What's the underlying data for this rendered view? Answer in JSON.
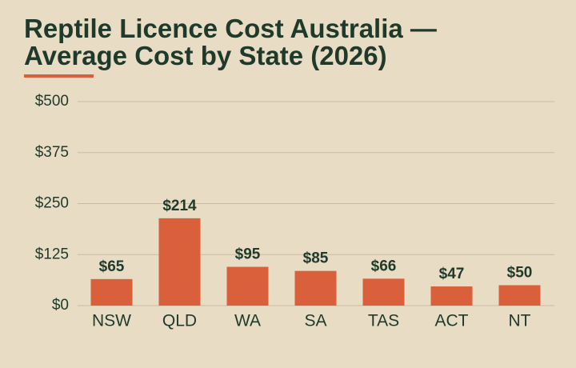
{
  "chart_data": {
    "type": "bar",
    "title": "Reptile Licence Cost Australia — Average Cost by State (2026)",
    "categories": [
      "NSW",
      "QLD",
      "WA",
      "SA",
      "TAS",
      "ACT",
      "NT"
    ],
    "values": [
      65,
      214,
      95,
      85,
      66,
      47,
      50
    ],
    "value_labels": [
      "$65",
      "$214",
      "$95",
      "$85",
      "$66",
      "$47",
      "$50"
    ],
    "color": "#d9603b",
    "ylim": [
      0,
      500
    ],
    "yticks": [
      {
        "value": 0,
        "label": "$0"
      },
      {
        "value": 125,
        "label": "$125"
      },
      {
        "value": 250,
        "label": "$250"
      },
      {
        "value": 375,
        "label": "$375"
      },
      {
        "value": 500,
        "label": "$500"
      }
    ],
    "grid": true
  }
}
